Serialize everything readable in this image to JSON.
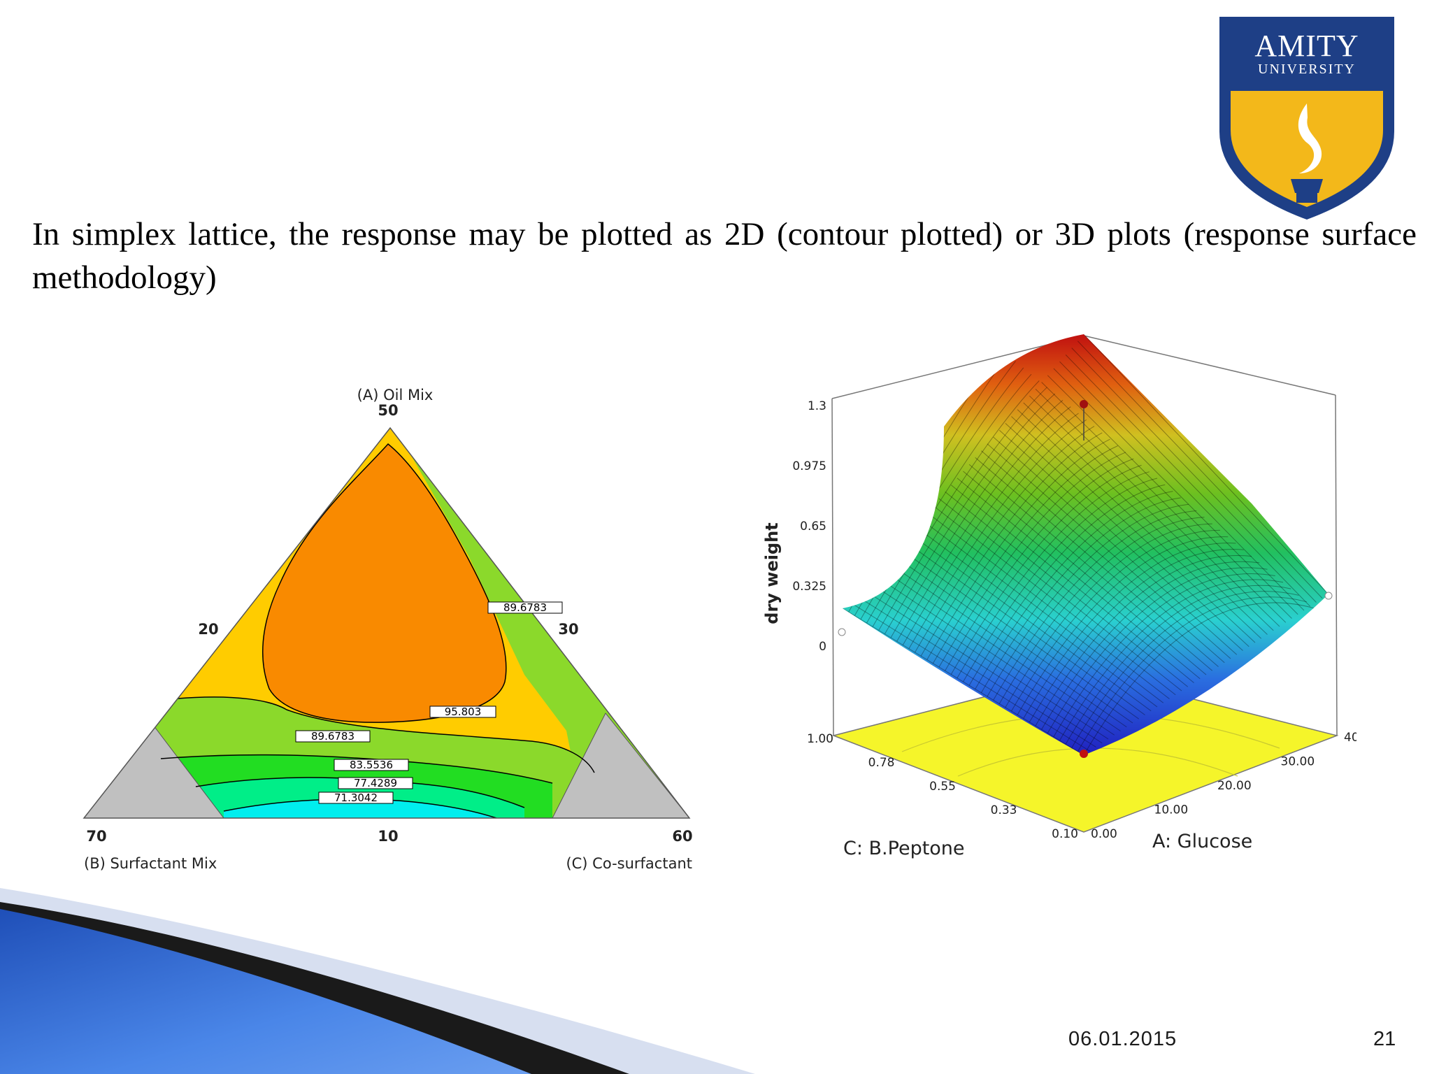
{
  "slide": {
    "body_text": "In simplex lattice, the response may be plotted as 2D (contour plotted) or 3D plots  (response surface methodology)",
    "date": "06.01.2015",
    "page_number": "21",
    "logo": {
      "line1": "AMITY",
      "line2": "UNIVERSITY",
      "colors": {
        "navy": "#1e3f86",
        "gold": "#f3b81a"
      }
    }
  },
  "chart_data": [
    {
      "type": "contour",
      "subtype": "ternary",
      "vertices": {
        "top": {
          "label": "(A) Oil Mix",
          "value": "50"
        },
        "left": {
          "label": "(B) Surfactant Mix",
          "value": "70"
        },
        "right": {
          "label": "(C) Co-surfactant",
          "value": "60"
        }
      },
      "edge_ticks": {
        "left": "20",
        "right": "30",
        "bottom": "10"
      },
      "contour_labels": [
        "89.6783",
        "95.803",
        "89.6783",
        "83.5536",
        "77.4289",
        "71.3042"
      ],
      "colors": {
        "orange": "#f98a00",
        "yellow": "#ffcc00",
        "green_light": "#8bd92b",
        "green": "#22dd22",
        "aqua": "#00ee88",
        "cyan": "#00eeee",
        "gray": "#c0c0c0"
      }
    },
    {
      "type": "surface3d",
      "zlabel": "dry weight",
      "z_ticks": [
        "0",
        "0.325",
        "0.65",
        "0.975",
        "1.3"
      ],
      "x_axis": {
        "label": "A: Glucose",
        "ticks": [
          "0.00",
          "10.00",
          "20.00",
          "30.00",
          "40.00"
        ]
      },
      "y_axis": {
        "label": "C: B.Peptone",
        "ticks": [
          "0.10",
          "0.33",
          "0.55",
          "0.78",
          "1.00"
        ]
      },
      "corner_values": {
        "front": 0.0,
        "left": 0.22,
        "right": 0.36,
        "back": 1.3
      },
      "colors": {
        "floor": "#f5f52a",
        "low": "#2020c0",
        "high": "#c01010"
      }
    }
  ]
}
